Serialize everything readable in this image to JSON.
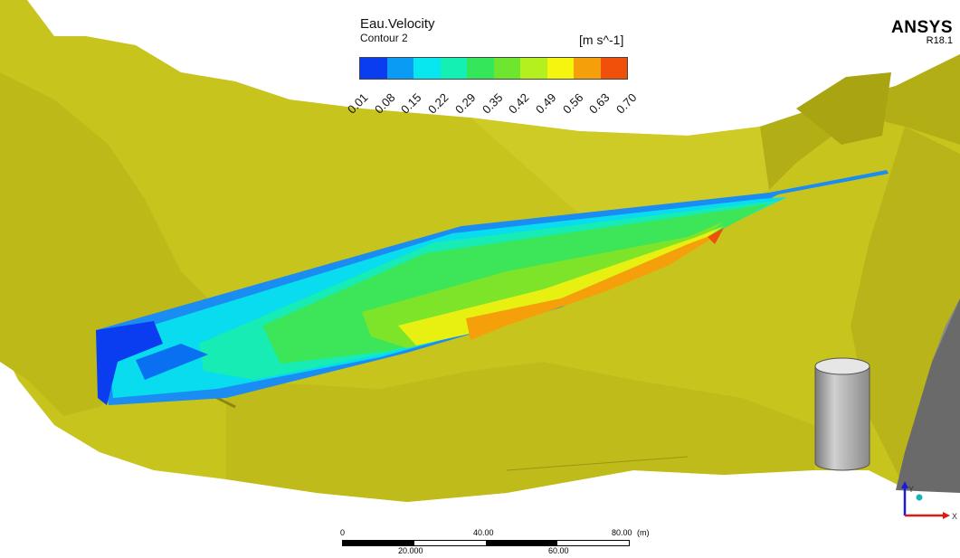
{
  "legend": {
    "title": "Eau.Velocity",
    "subtitle": "Contour 2",
    "unit": "[m s^-1]",
    "ticks": [
      "0.01",
      "0.08",
      "0.15",
      "0.22",
      "0.29",
      "0.35",
      "0.42",
      "0.49",
      "0.56",
      "0.63",
      "0.70"
    ],
    "colors": [
      "#0a3cf0",
      "#0a9cf5",
      "#08e6f0",
      "#14f0b4",
      "#33e65a",
      "#6ee62d",
      "#b4f01e",
      "#f5f50f",
      "#f5a00a",
      "#f0500a"
    ]
  },
  "brand": {
    "name": "ANSYS",
    "version": "R18.1"
  },
  "scale_bar": {
    "top_labels": [
      "0",
      "40.00",
      "80.00"
    ],
    "unit": "(m)",
    "bottom_labels": [
      "20.000",
      "60.00"
    ]
  },
  "axes": {
    "x": "X",
    "y": "Y"
  },
  "colors": {
    "terrain": "#c8c41e",
    "terrain_dark": "#a8a412",
    "cylinder": "#a0a0a0",
    "structure": "#6a6a6a"
  }
}
